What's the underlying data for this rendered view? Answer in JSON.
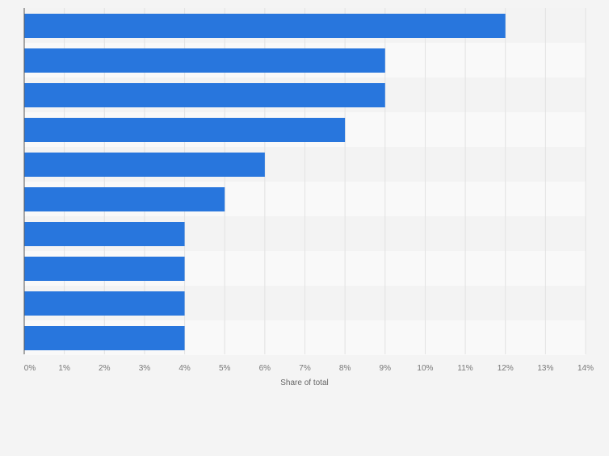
{
  "chart_data": {
    "type": "bar",
    "orientation": "horizontal",
    "categories": [
      "",
      "",
      "",
      "",
      "",
      "",
      "",
      "",
      "",
      ""
    ],
    "values": [
      12,
      9,
      9,
      8,
      6,
      5,
      4,
      4,
      4,
      4
    ],
    "xlim": [
      0,
      14
    ],
    "x_ticks": [
      "0%",
      "1%",
      "2%",
      "3%",
      "4%",
      "5%",
      "6%",
      "7%",
      "8%",
      "9%",
      "10%",
      "11%",
      "12%",
      "13%",
      "14%"
    ],
    "xlabel": "Share of total",
    "ylabel": "",
    "title": "",
    "grid": true,
    "legend": "none",
    "colors": {
      "bar": "#2876dd",
      "band_light": "#f9f9f9",
      "band_dark": "#f3f3f3",
      "gridline": "#e2e2e2",
      "axis": "#555555",
      "tick_text": "#777777"
    }
  }
}
